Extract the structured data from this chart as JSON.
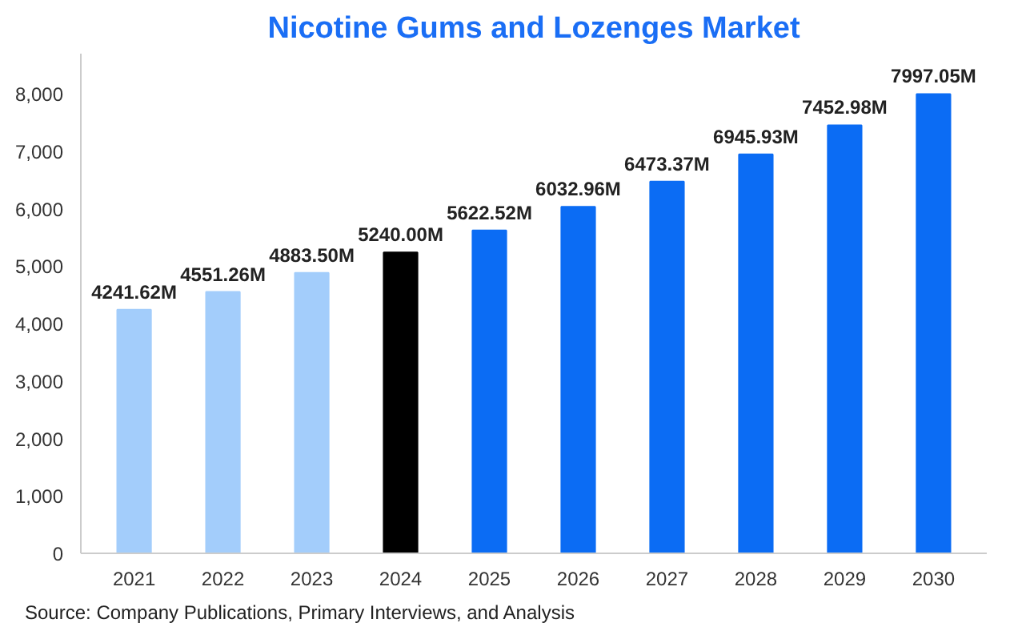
{
  "chart_data": {
    "type": "bar",
    "title": "Nicotine Gums and Lozenges Market",
    "categories": [
      "2021",
      "2022",
      "2023",
      "2024",
      "2025",
      "2026",
      "2027",
      "2028",
      "2029",
      "2030"
    ],
    "values": [
      4241.62,
      4551.26,
      4883.5,
      5240.0,
      5622.52,
      6032.96,
      6473.37,
      6945.93,
      7452.98,
      7997.05
    ],
    "colors": [
      "#a3cdfb",
      "#a3cdfb",
      "#a3cdfb",
      "#000000",
      "#0b6cf4",
      "#0b6cf4",
      "#0b6cf4",
      "#0b6cf4",
      "#0b6cf4",
      "#0b6cf4"
    ],
    "value_labels": [
      "4241.62M",
      "4551.26M",
      "4883.50M",
      "5240.00M",
      "5622.52M",
      "6032.96M",
      "6473.37M",
      "6945.93M",
      "7452.98M",
      "7997.05M"
    ],
    "ylim": [
      0,
      8700
    ],
    "yticks": [
      0,
      {
        "value": 1000,
        "label": "1,000"
      },
      {
        "value": 2000,
        "label": "2,000"
      },
      {
        "value": 3000,
        "label": "3,000"
      },
      {
        "value": 4000,
        "label": "4,000"
      },
      {
        "value": 5000,
        "label": "5,000"
      },
      {
        "value": 6000,
        "label": "6,000"
      },
      {
        "value": 7000,
        "label": "7,000"
      },
      {
        "value": 8000,
        "label": "8,000"
      }
    ],
    "grid": false,
    "annotations": [
      "Source: Company Publications, Primary Interviews, and Analysis"
    ]
  }
}
